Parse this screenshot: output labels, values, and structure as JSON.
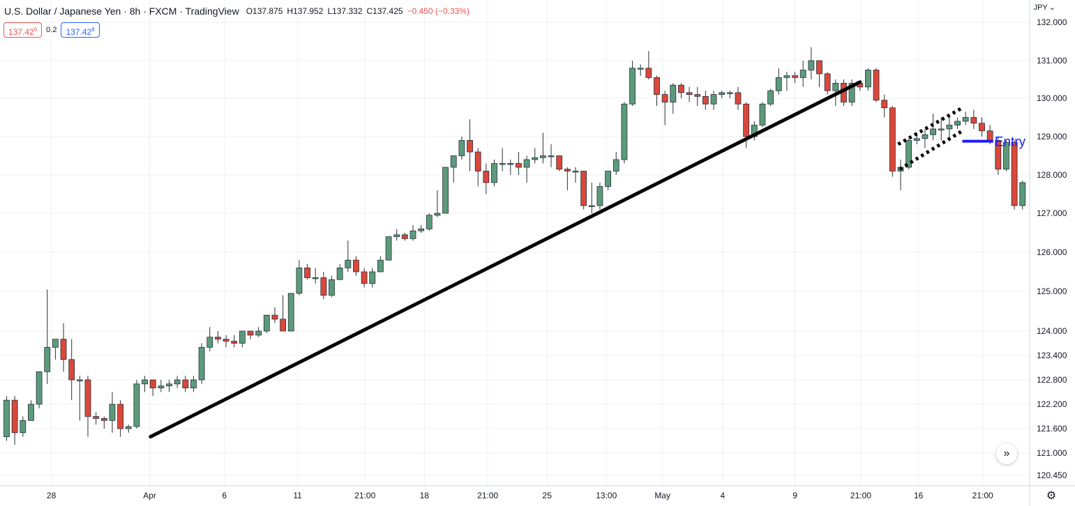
{
  "header": {
    "symbol": "U.S. Dollar / Japanese Yen · 8h · FXCM · TradingView",
    "open": "O137.875",
    "high": "H137.952",
    "low": "L137.332",
    "close": "C137.425",
    "change": "−0.450 (−0.33%)"
  },
  "quotes": {
    "sell": "137.42",
    "sell_sup": "6",
    "spread": "0.2",
    "buy": "137.42",
    "buy_sup": "8"
  },
  "currency": "JPY",
  "icons": {
    "scroll": "double-chevron-right-icon",
    "settings": "gear-icon"
  },
  "colors": {
    "up": "#5b9b7b",
    "down": "#d9483b",
    "trendline": "#000000",
    "entry": "#1a1aff",
    "grid": "#eef0f3"
  },
  "chart_data": {
    "type": "candlestick",
    "symbol": "USDJPY",
    "timeframe": "8h",
    "y_ticks": [
      132.0,
      131.0,
      130.0,
      129.0,
      128.0,
      127.0,
      126.0,
      125.0,
      124.0,
      123.4,
      122.8,
      122.2,
      121.6,
      121.0,
      120.45
    ],
    "y_tick_labels": [
      "132.000",
      "131.000",
      "130.000",
      "129.000",
      "128.000",
      "127.000",
      "126.000",
      "125.000",
      "124.000",
      "123.400",
      "122.800",
      "122.200",
      "121.600",
      "121.000",
      "120.450"
    ],
    "x_ticks": [
      {
        "label": "28",
        "index": 5.5
      },
      {
        "label": "Apr",
        "index": 17.6
      },
      {
        "label": "6",
        "index": 26.8
      },
      {
        "label": "11",
        "index": 35.8
      },
      {
        "label": "21:00",
        "index": 44.1
      },
      {
        "label": "18",
        "index": 51.4
      },
      {
        "label": "21:00",
        "index": 59.2
      },
      {
        "label": "25",
        "index": 66.5
      },
      {
        "label": "13:00",
        "index": 73.8
      },
      {
        "label": "May",
        "index": 80.7
      },
      {
        "label": "4",
        "index": 88.1
      },
      {
        "label": "9",
        "index": 97.0
      },
      {
        "label": "21:00",
        "index": 105.1
      },
      {
        "label": "16",
        "index": 112.2
      },
      {
        "label": "21:00",
        "index": 120.1
      }
    ],
    "candles": [
      [
        121.4,
        122.3,
        121.3,
        122.4
      ],
      [
        122.3,
        121.5,
        121.2,
        122.4
      ],
      [
        121.5,
        121.8,
        121.4,
        121.9
      ],
      [
        121.8,
        122.2,
        121.8,
        122.3
      ],
      [
        122.2,
        123.0,
        122.1,
        123.0
      ],
      [
        123.0,
        123.6,
        122.7,
        125.05
      ],
      [
        123.6,
        123.8,
        123.3,
        123.8
      ],
      [
        123.8,
        123.3,
        123.0,
        124.2
      ],
      [
        123.3,
        122.8,
        122.3,
        123.8
      ],
      [
        122.8,
        122.8,
        121.8,
        122.9
      ],
      [
        122.8,
        121.9,
        121.4,
        122.9
      ],
      [
        121.9,
        121.85,
        121.7,
        122.0
      ],
      [
        121.85,
        121.8,
        121.6,
        121.9
      ],
      [
        121.8,
        122.2,
        121.5,
        122.5
      ],
      [
        122.2,
        121.6,
        121.4,
        122.3
      ],
      [
        121.6,
        121.65,
        121.5,
        121.7
      ],
      [
        121.65,
        122.7,
        121.6,
        122.8
      ],
      [
        122.7,
        122.8,
        122.5,
        122.9
      ],
      [
        122.8,
        122.6,
        122.4,
        122.8
      ],
      [
        122.6,
        122.65,
        122.5,
        122.8
      ],
      [
        122.65,
        122.7,
        122.5,
        122.8
      ],
      [
        122.7,
        122.8,
        122.6,
        122.9
      ],
      [
        122.8,
        122.6,
        122.5,
        122.9
      ],
      [
        122.6,
        122.8,
        122.5,
        122.9
      ],
      [
        122.8,
        123.6,
        122.7,
        123.7
      ],
      [
        123.6,
        123.85,
        123.5,
        124.1
      ],
      [
        123.85,
        123.8,
        123.7,
        124.0
      ],
      [
        123.8,
        123.75,
        123.6,
        123.9
      ],
      [
        123.75,
        123.7,
        123.6,
        123.9
      ],
      [
        123.7,
        124.0,
        123.6,
        124.0
      ],
      [
        124.0,
        123.9,
        123.8,
        124.0
      ],
      [
        123.9,
        124.0,
        123.85,
        124.1
      ],
      [
        124.0,
        124.4,
        123.95,
        124.4
      ],
      [
        124.4,
        124.3,
        124.2,
        124.6
      ],
      [
        124.3,
        124.0,
        124.0,
        124.9
      ],
      [
        124.0,
        124.95,
        124.0,
        124.95
      ],
      [
        124.95,
        125.6,
        124.9,
        125.8
      ],
      [
        125.6,
        125.35,
        125.3,
        125.7
      ],
      [
        125.35,
        125.35,
        125.2,
        125.6
      ],
      [
        125.35,
        124.9,
        124.8,
        125.5
      ],
      [
        124.9,
        125.3,
        124.85,
        125.4
      ],
      [
        125.3,
        125.6,
        125.3,
        125.7
      ],
      [
        125.6,
        125.8,
        125.5,
        126.3
      ],
      [
        125.8,
        125.5,
        125.4,
        125.9
      ],
      [
        125.5,
        125.2,
        125.1,
        125.6
      ],
      [
        125.2,
        125.5,
        125.1,
        125.6
      ],
      [
        125.5,
        125.8,
        125.5,
        125.9
      ],
      [
        125.8,
        126.4,
        125.8,
        126.4
      ],
      [
        126.4,
        126.45,
        126.3,
        126.6
      ],
      [
        126.45,
        126.35,
        126.3,
        126.5
      ],
      [
        126.35,
        126.55,
        126.3,
        126.7
      ],
      [
        126.55,
        126.6,
        126.5,
        126.7
      ],
      [
        126.6,
        126.95,
        126.55,
        127.0
      ],
      [
        126.95,
        127.0,
        126.9,
        127.6
      ],
      [
        127.0,
        128.2,
        127.0,
        128.2
      ],
      [
        128.2,
        128.5,
        127.8,
        128.5
      ],
      [
        128.5,
        128.9,
        128.4,
        129.0
      ],
      [
        128.9,
        128.6,
        128.1,
        129.45
      ],
      [
        128.6,
        128.1,
        127.7,
        128.7
      ],
      [
        128.1,
        127.8,
        127.5,
        128.3
      ],
      [
        127.8,
        128.3,
        127.7,
        128.4
      ],
      [
        128.3,
        128.3,
        128.1,
        128.7
      ],
      [
        128.3,
        128.3,
        128.0,
        128.4
      ],
      [
        128.3,
        128.2,
        128.0,
        128.6
      ],
      [
        128.2,
        128.4,
        127.8,
        128.5
      ],
      [
        128.4,
        128.45,
        128.3,
        128.7
      ],
      [
        128.45,
        128.5,
        128.3,
        129.1
      ],
      [
        128.5,
        128.5,
        128.2,
        128.8
      ],
      [
        128.5,
        128.15,
        128.1,
        128.5
      ],
      [
        128.15,
        128.1,
        127.6,
        128.2
      ],
      [
        128.1,
        128.1,
        127.8,
        128.2
      ],
      [
        128.1,
        127.2,
        127.1,
        128.1
      ],
      [
        127.2,
        127.2,
        127.0,
        127.8
      ],
      [
        127.2,
        127.7,
        127.1,
        127.8
      ],
      [
        127.7,
        128.1,
        127.6,
        128.1
      ],
      [
        128.1,
        128.4,
        128.0,
        128.6
      ],
      [
        128.4,
        129.85,
        128.3,
        129.9
      ],
      [
        129.85,
        130.8,
        129.8,
        131.0
      ],
      [
        130.8,
        130.8,
        130.6,
        130.9
      ],
      [
        130.8,
        130.55,
        130.5,
        131.25
      ],
      [
        130.55,
        130.1,
        129.8,
        130.6
      ],
      [
        130.1,
        129.9,
        129.3,
        130.2
      ],
      [
        129.9,
        130.35,
        129.6,
        130.4
      ],
      [
        130.35,
        130.15,
        130.0,
        130.4
      ],
      [
        130.15,
        130.1,
        129.9,
        130.3
      ],
      [
        130.1,
        130.05,
        129.8,
        130.3
      ],
      [
        130.05,
        129.85,
        129.7,
        130.2
      ],
      [
        129.85,
        130.1,
        129.7,
        130.2
      ],
      [
        130.1,
        130.15,
        130.0,
        130.2
      ],
      [
        130.15,
        130.15,
        130.0,
        130.2
      ],
      [
        130.15,
        129.85,
        129.7,
        130.3
      ],
      [
        129.85,
        129.0,
        128.7,
        129.9
      ],
      [
        129.0,
        129.3,
        128.9,
        129.4
      ],
      [
        129.3,
        129.85,
        129.25,
        129.9
      ],
      [
        129.85,
        130.2,
        129.8,
        130.25
      ],
      [
        130.2,
        130.55,
        130.1,
        130.8
      ],
      [
        130.55,
        130.6,
        130.2,
        130.7
      ],
      [
        130.6,
        130.55,
        130.4,
        130.7
      ],
      [
        130.55,
        130.75,
        130.3,
        131.0
      ],
      [
        130.75,
        131.0,
        130.5,
        131.35
      ],
      [
        131.0,
        130.65,
        130.3,
        131.0
      ],
      [
        130.65,
        130.2,
        130.1,
        130.7
      ],
      [
        130.2,
        130.4,
        129.8,
        130.5
      ],
      [
        130.4,
        129.9,
        129.8,
        130.5
      ],
      [
        129.9,
        130.4,
        129.8,
        130.5
      ],
      [
        130.4,
        130.3,
        130.2,
        130.4
      ],
      [
        130.3,
        130.75,
        130.2,
        130.8
      ],
      [
        130.75,
        129.95,
        129.9,
        130.8
      ],
      [
        129.95,
        129.75,
        129.5,
        130.1
      ],
      [
        129.75,
        128.1,
        127.95,
        129.8
      ],
      [
        128.1,
        128.2,
        127.6,
        128.4
      ],
      [
        128.2,
        128.9,
        128.15,
        128.95
      ],
      [
        128.9,
        128.95,
        128.8,
        129.1
      ],
      [
        128.95,
        129.05,
        128.7,
        129.2
      ],
      [
        129.05,
        129.2,
        128.9,
        129.6
      ],
      [
        129.2,
        129.2,
        128.9,
        129.5
      ],
      [
        129.2,
        129.3,
        128.95,
        129.5
      ],
      [
        129.3,
        129.4,
        129.2,
        129.5
      ],
      [
        129.4,
        129.5,
        129.3,
        129.65
      ],
      [
        129.5,
        129.35,
        129.2,
        129.7
      ],
      [
        129.35,
        129.15,
        129.0,
        129.5
      ],
      [
        129.15,
        128.9,
        128.8,
        129.3
      ],
      [
        128.9,
        128.15,
        128.0,
        129.0
      ],
      [
        128.15,
        128.85,
        128.1,
        128.9
      ],
      [
        128.85,
        127.2,
        127.1,
        128.9
      ],
      [
        127.2,
        127.8,
        127.1,
        127.85
      ]
    ],
    "annotations": [
      {
        "type": "trendline",
        "from": [
          17.7,
          121.4
        ],
        "to": [
          105.0,
          130.43
        ]
      },
      {
        "type": "dotted-channel-upper",
        "from": [
          109.7,
          128.8
        ],
        "to": [
          117.6,
          129.75
        ]
      },
      {
        "type": "dotted-channel-lower",
        "from": [
          109.9,
          128.15
        ],
        "to": [
          117.6,
          129.15
        ]
      },
      {
        "type": "horizontal-level",
        "label": "Entry",
        "value": 128.88,
        "from": 117.6,
        "to": 121.4
      }
    ]
  }
}
